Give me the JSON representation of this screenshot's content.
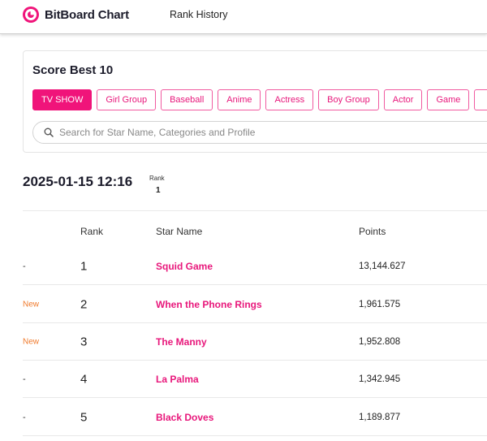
{
  "header": {
    "brand": "BitBoard Chart",
    "nav_link": "Rank History"
  },
  "panel": {
    "title": "Score Best 10",
    "categories": [
      "TV SHOW",
      "Girl Group",
      "Baseball",
      "Anime",
      "Actress",
      "Boy Group",
      "Actor",
      "Game"
    ],
    "active_category": "TV SHOW",
    "search_placeholder": "Search for Star Name, Categories and Profile",
    "search_value": ""
  },
  "snapshot": {
    "datetime": "2025-01-15 12:16",
    "rank_label": "Rank",
    "rank_value": "1"
  },
  "table": {
    "headers": {
      "rank": "Rank",
      "star_name": "Star Name",
      "points": "Points"
    },
    "rows": [
      {
        "change": "-",
        "rank": "1",
        "name": "Squid Game",
        "points": "13,144.627"
      },
      {
        "change": "New",
        "rank": "2",
        "name": "When the Phone Rings",
        "points": "1,961.575"
      },
      {
        "change": "New",
        "rank": "3",
        "name": "The Manny",
        "points": "1,952.808"
      },
      {
        "change": "-",
        "rank": "4",
        "name": "La Palma",
        "points": "1,342.945"
      },
      {
        "change": "-",
        "rank": "5",
        "name": "Black Doves",
        "points": "1,189.877"
      }
    ]
  },
  "colors": {
    "accent": "#f0147a",
    "new_badge": "#f07a2c"
  },
  "icons": {
    "logo": "bitboard-logo-icon",
    "search": "search-icon"
  }
}
